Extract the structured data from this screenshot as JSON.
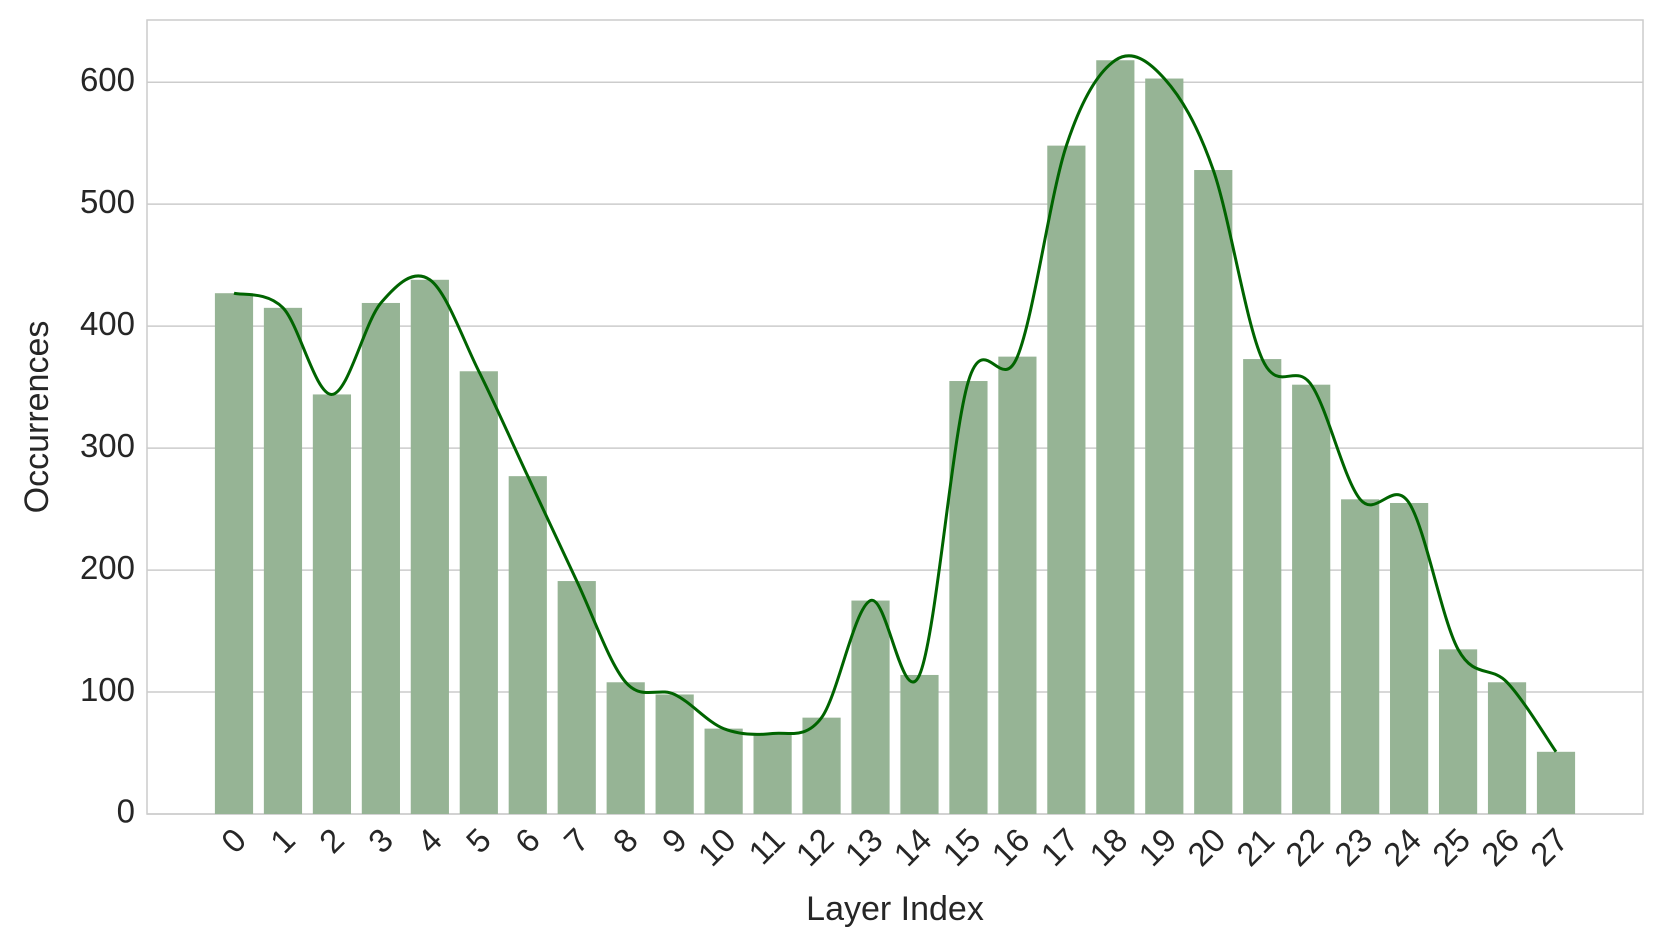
{
  "chart_data": {
    "type": "bar",
    "x_label": "Layer Index",
    "y_label": "Occurrences",
    "categories": [
      "0",
      "1",
      "2",
      "3",
      "4",
      "5",
      "6",
      "7",
      "8",
      "9",
      "10",
      "11",
      "12",
      "13",
      "14",
      "15",
      "16",
      "17",
      "18",
      "19",
      "20",
      "21",
      "22",
      "23",
      "24",
      "25",
      "26",
      "27"
    ],
    "values": [
      427,
      415,
      344,
      419,
      438,
      363,
      277,
      191,
      108,
      98,
      70,
      66,
      79,
      175,
      114,
      355,
      375,
      548,
      618,
      603,
      528,
      373,
      352,
      258,
      255,
      135,
      108,
      51
    ],
    "color": "#96b495",
    "line_color": "#006400",
    "ylim": [
      0,
      651
    ],
    "yticks": [
      0,
      100,
      200,
      300,
      400,
      500,
      600
    ],
    "grid": true
  }
}
